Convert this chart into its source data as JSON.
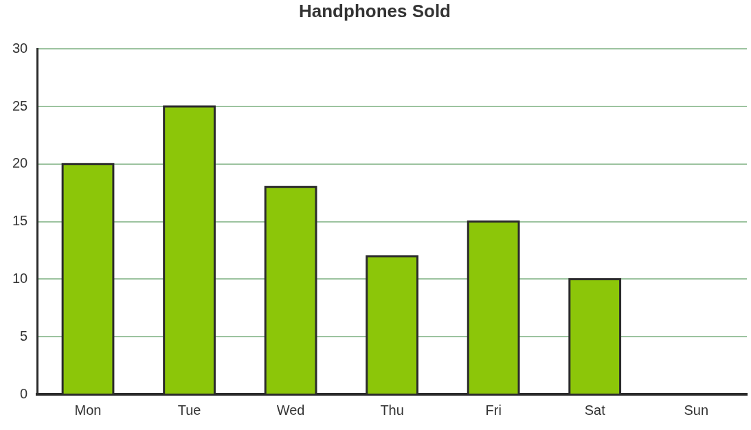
{
  "chart_data": {
    "type": "bar",
    "title": "Handphones Sold",
    "categories": [
      "Mon",
      "Tue",
      "Wed",
      "Thu",
      "Fri",
      "Sat",
      "Sun"
    ],
    "values": [
      20,
      25,
      18,
      12,
      15,
      10,
      0
    ],
    "color": "#8cc609",
    "ylim": [
      0,
      30
    ],
    "yticks": [
      0,
      5,
      10,
      15,
      20,
      25,
      30
    ],
    "grid": "y",
    "legend": false
  }
}
